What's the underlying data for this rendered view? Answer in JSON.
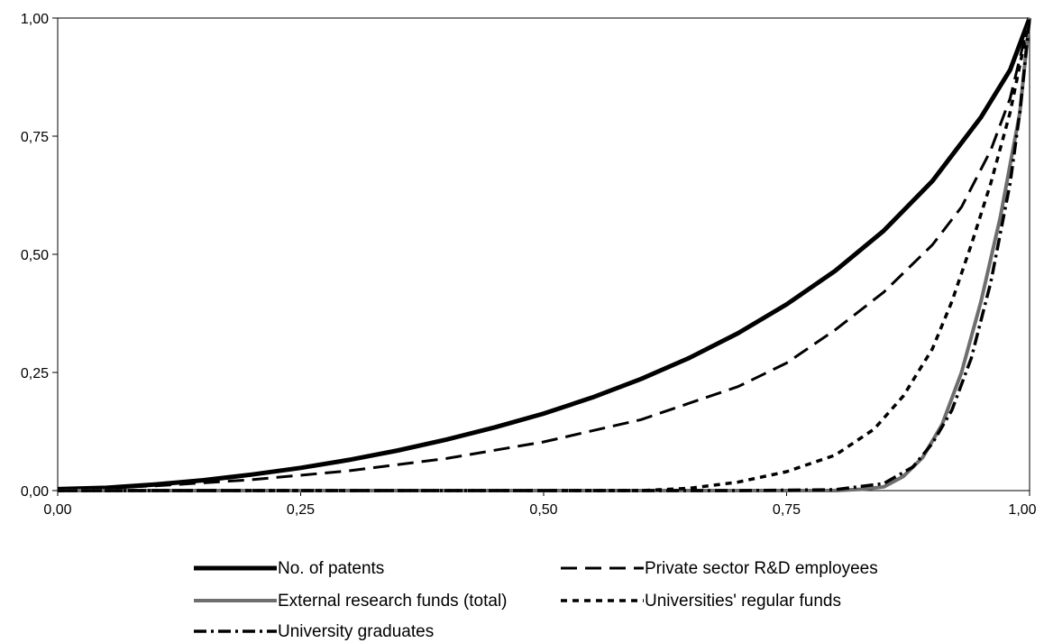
{
  "chart_data": {
    "type": "line",
    "title": "",
    "xlabel": "",
    "ylabel": "",
    "xlim": [
      0,
      1
    ],
    "ylim": [
      0,
      1
    ],
    "x_ticks": [
      "0,00",
      "0,25",
      "0,50",
      "0,75",
      "1,00"
    ],
    "y_ticks": [
      "0,00",
      "0,25",
      "0,50",
      "0,75",
      "1,00"
    ],
    "grid": false,
    "legend_position": "bottom",
    "series": [
      {
        "name": "No. of patents",
        "color": "#000000",
        "style": "solid-thick",
        "points": [
          [
            0.0,
            0.003
          ],
          [
            0.05,
            0.006
          ],
          [
            0.1,
            0.013
          ],
          [
            0.15,
            0.022
          ],
          [
            0.2,
            0.034
          ],
          [
            0.25,
            0.048
          ],
          [
            0.3,
            0.065
          ],
          [
            0.35,
            0.085
          ],
          [
            0.4,
            0.108
          ],
          [
            0.45,
            0.134
          ],
          [
            0.5,
            0.163
          ],
          [
            0.55,
            0.197
          ],
          [
            0.6,
            0.236
          ],
          [
            0.65,
            0.281
          ],
          [
            0.7,
            0.333
          ],
          [
            0.75,
            0.394
          ],
          [
            0.8,
            0.465
          ],
          [
            0.85,
            0.55
          ],
          [
            0.9,
            0.655
          ],
          [
            0.95,
            0.79
          ],
          [
            0.98,
            0.89
          ],
          [
            1.0,
            1.0
          ]
        ]
      },
      {
        "name": "Private sector R&D employees",
        "color": "#000000",
        "style": "long-dash",
        "points": [
          [
            0.0,
            0.002
          ],
          [
            0.1,
            0.01
          ],
          [
            0.2,
            0.023
          ],
          [
            0.3,
            0.042
          ],
          [
            0.4,
            0.068
          ],
          [
            0.5,
            0.103
          ],
          [
            0.6,
            0.15
          ],
          [
            0.7,
            0.22
          ],
          [
            0.75,
            0.27
          ],
          [
            0.8,
            0.34
          ],
          [
            0.85,
            0.42
          ],
          [
            0.9,
            0.52
          ],
          [
            0.93,
            0.6
          ],
          [
            0.96,
            0.72
          ],
          [
            0.98,
            0.83
          ],
          [
            1.0,
            1.0
          ]
        ]
      },
      {
        "name": "External research funds (total)",
        "color": "#6e6e6e",
        "style": "solid-gray",
        "points": [
          [
            0.0,
            0.0
          ],
          [
            0.8,
            0.0
          ],
          [
            0.83,
            0.003
          ],
          [
            0.85,
            0.008
          ],
          [
            0.87,
            0.03
          ],
          [
            0.89,
            0.07
          ],
          [
            0.91,
            0.14
          ],
          [
            0.93,
            0.25
          ],
          [
            0.95,
            0.4
          ],
          [
            0.97,
            0.58
          ],
          [
            0.99,
            0.8
          ],
          [
            1.0,
            1.0
          ]
        ]
      },
      {
        "name": "Universities' regular funds",
        "color": "#000000",
        "style": "short-dash",
        "points": [
          [
            0.0,
            0.0
          ],
          [
            0.6,
            0.0
          ],
          [
            0.65,
            0.005
          ],
          [
            0.7,
            0.018
          ],
          [
            0.75,
            0.04
          ],
          [
            0.8,
            0.075
          ],
          [
            0.84,
            0.13
          ],
          [
            0.87,
            0.2
          ],
          [
            0.9,
            0.3
          ],
          [
            0.92,
            0.4
          ],
          [
            0.94,
            0.52
          ],
          [
            0.96,
            0.65
          ],
          [
            0.98,
            0.8
          ],
          [
            1.0,
            1.0
          ]
        ]
      },
      {
        "name": "University graduates",
        "color": "#000000",
        "style": "dash-dot",
        "points": [
          [
            0.0,
            0.0
          ],
          [
            0.7,
            0.0
          ],
          [
            0.8,
            0.002
          ],
          [
            0.85,
            0.015
          ],
          [
            0.88,
            0.05
          ],
          [
            0.9,
            0.1
          ],
          [
            0.92,
            0.17
          ],
          [
            0.94,
            0.28
          ],
          [
            0.96,
            0.44
          ],
          [
            0.98,
            0.65
          ],
          [
            0.99,
            0.8
          ],
          [
            1.0,
            1.0
          ]
        ]
      }
    ]
  }
}
